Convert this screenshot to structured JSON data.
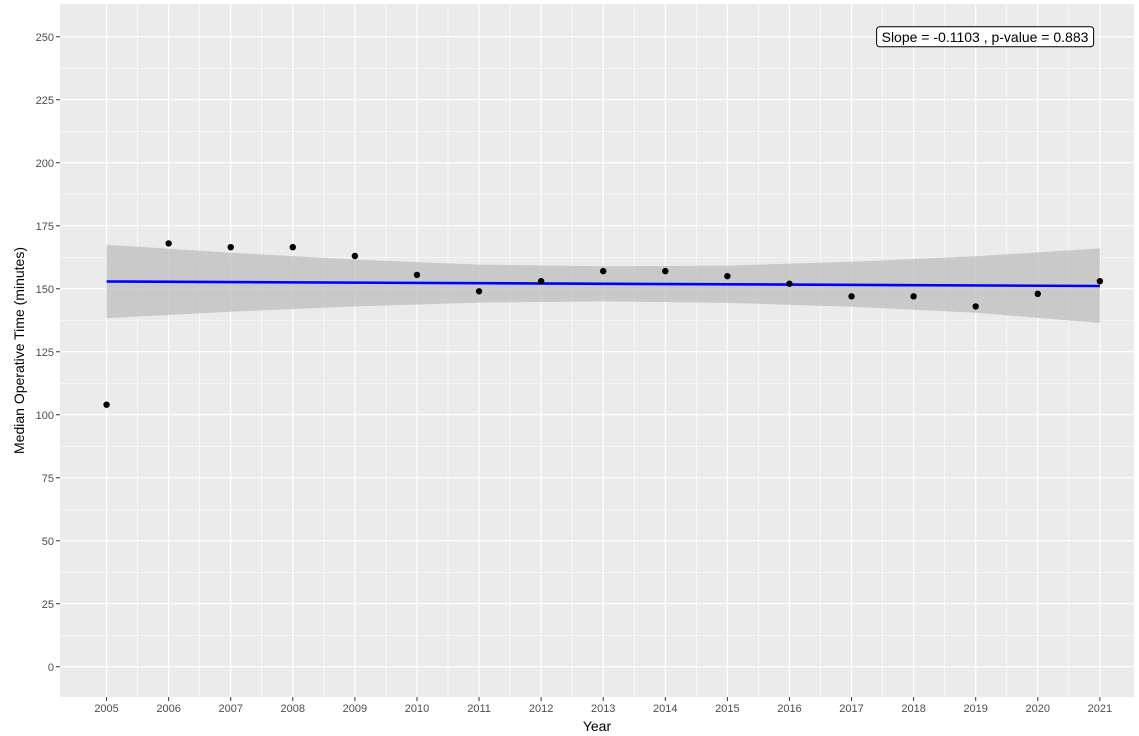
{
  "chart_data": {
    "type": "scatter",
    "xlabel": "Year",
    "ylabel": "Median Operative Time (minutes)",
    "xlim": [
      2004.25,
      2021.55
    ],
    "ylim": [
      -12,
      263
    ],
    "xticks": [
      2005,
      2006,
      2007,
      2008,
      2009,
      2010,
      2011,
      2012,
      2013,
      2014,
      2015,
      2016,
      2017,
      2018,
      2019,
      2020,
      2021
    ],
    "yticks": [
      0,
      25,
      50,
      75,
      100,
      125,
      150,
      175,
      200,
      225,
      250
    ],
    "grid": true,
    "points": {
      "x": [
        2005,
        2006,
        2007,
        2008,
        2009,
        2010,
        2011,
        2012,
        2013,
        2014,
        2015,
        2016,
        2017,
        2018,
        2019,
        2020,
        2021
      ],
      "y": [
        104,
        168,
        166.5,
        166.5,
        163,
        155.5,
        149,
        153,
        157,
        157,
        155,
        152,
        147,
        147,
        143,
        148,
        153
      ]
    },
    "trend_line": {
      "x": [
        2005,
        2021
      ],
      "y": [
        152.9,
        151.1
      ],
      "color": "#0000ff"
    },
    "confidence_band": {
      "x": [
        2005,
        2007,
        2009,
        2011,
        2013,
        2015,
        2017,
        2019,
        2021
      ],
      "upper": [
        167.5,
        164.3,
        161.6,
        159.6,
        158.9,
        159.2,
        160.7,
        162.9,
        166.0
      ],
      "lower": [
        138.3,
        140.9,
        143.0,
        144.5,
        145.0,
        144.4,
        142.9,
        140.5,
        136.4
      ],
      "color": "#bebebe"
    },
    "annotation": "Slope = -0.1103 , p-value = 0.883",
    "colors": {
      "panel": "#ebebeb",
      "grid": "#ffffff",
      "points": "#000000",
      "line": "#0000ff",
      "band": "#bebebe"
    }
  }
}
